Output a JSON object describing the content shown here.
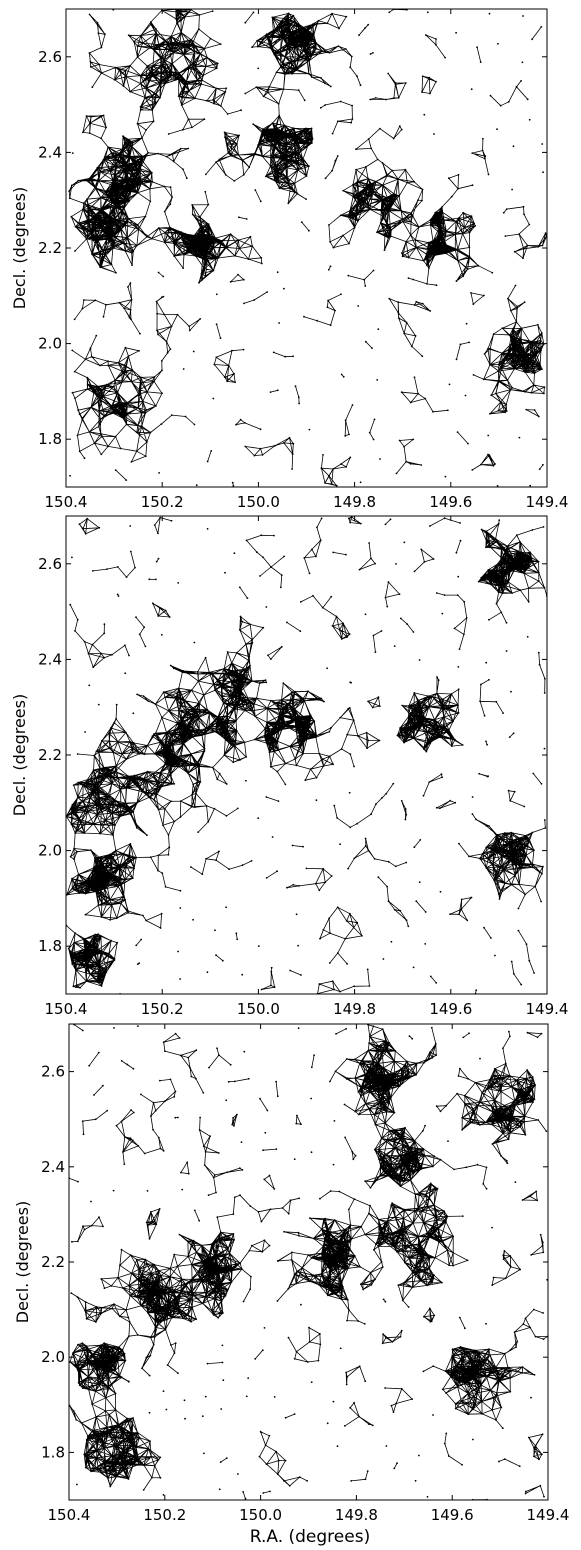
{
  "figure": {
    "xlabel": "R.A. (degrees)"
  },
  "chart_data": [
    {
      "type": "scatter",
      "panel": "top",
      "title": "",
      "xlabel": "",
      "ylabel": "Decl. (degrees)",
      "xlim": [
        150.4,
        149.4
      ],
      "ylim": [
        1.7,
        2.7
      ],
      "x_ticks": [
        "150.4",
        "150.2",
        "150.0",
        "149.8",
        "149.6",
        "149.4"
      ],
      "y_ticks": [
        "1.8",
        "2.0",
        "2.2",
        "2.4",
        "2.6"
      ],
      "x_tick_values": [
        150.4,
        150.2,
        150.0,
        149.8,
        149.6,
        149.4
      ],
      "y_tick_values": [
        1.8,
        2.0,
        2.2,
        2.4,
        2.6
      ],
      "grid": false,
      "series": [
        {
          "marker": "point",
          "connections": "network graph",
          "color": "#000000"
        }
      ],
      "dense_regions": [
        {
          "x": 150.18,
          "y": 2.58,
          "spread": 0.08
        },
        {
          "x": 149.93,
          "y": 2.62,
          "spread": 0.06
        },
        {
          "x": 149.95,
          "y": 2.41,
          "spread": 0.07
        },
        {
          "x": 150.28,
          "y": 2.36,
          "spread": 0.07
        },
        {
          "x": 150.32,
          "y": 2.25,
          "spread": 0.06
        },
        {
          "x": 150.12,
          "y": 2.21,
          "spread": 0.05
        },
        {
          "x": 149.75,
          "y": 2.3,
          "spread": 0.06
        },
        {
          "x": 149.62,
          "y": 2.22,
          "spread": 0.05
        },
        {
          "x": 150.3,
          "y": 1.87,
          "spread": 0.07
        },
        {
          "x": 149.45,
          "y": 1.97,
          "spread": 0.05
        }
      ]
    },
    {
      "type": "scatter",
      "panel": "middle",
      "title": "",
      "xlabel": "",
      "ylabel": "Decl. (degrees)",
      "xlim": [
        150.4,
        149.4
      ],
      "ylim": [
        1.7,
        2.7
      ],
      "x_ticks": [
        "150.4",
        "150.2",
        "150.0",
        "149.8",
        "149.6",
        "149.4"
      ],
      "y_ticks": [
        "1.8",
        "2.0",
        "2.2",
        "2.4",
        "2.6"
      ],
      "x_tick_values": [
        150.4,
        150.2,
        150.0,
        149.8,
        149.6,
        149.4
      ],
      "y_tick_values": [
        1.8,
        2.0,
        2.2,
        2.4,
        2.6
      ],
      "grid": false,
      "series": [
        {
          "marker": "point",
          "connections": "network graph",
          "color": "#000000"
        }
      ],
      "dense_regions": [
        {
          "x": 150.05,
          "y": 2.34,
          "spread": 0.07
        },
        {
          "x": 150.15,
          "y": 2.22,
          "spread": 0.08
        },
        {
          "x": 150.3,
          "y": 2.12,
          "spread": 0.08
        },
        {
          "x": 150.33,
          "y": 1.95,
          "spread": 0.06
        },
        {
          "x": 149.65,
          "y": 2.26,
          "spread": 0.05
        },
        {
          "x": 149.92,
          "y": 2.26,
          "spread": 0.06
        },
        {
          "x": 149.48,
          "y": 2.6,
          "spread": 0.05
        },
        {
          "x": 149.47,
          "y": 1.98,
          "spread": 0.05
        },
        {
          "x": 150.36,
          "y": 1.78,
          "spread": 0.05
        }
      ]
    },
    {
      "type": "scatter",
      "panel": "bottom",
      "title": "",
      "xlabel": "R.A. (degrees)",
      "ylabel": "Decl. (degrees)",
      "xlim": [
        150.4,
        149.4
      ],
      "ylim": [
        1.7,
        2.7
      ],
      "x_ticks": [
        "150.4",
        "150.2",
        "150.0",
        "149.8",
        "149.6",
        "149.4"
      ],
      "y_ticks": [
        "1.8",
        "2.0",
        "2.2",
        "2.4",
        "2.6"
      ],
      "x_tick_values": [
        150.4,
        150.2,
        150.0,
        149.8,
        149.6,
        149.4
      ],
      "y_tick_values": [
        1.8,
        2.0,
        2.2,
        2.4,
        2.6
      ],
      "grid": false,
      "series": [
        {
          "marker": "point",
          "connections": "network graph",
          "color": "#000000"
        }
      ],
      "dense_regions": [
        {
          "x": 150.22,
          "y": 2.13,
          "spread": 0.07
        },
        {
          "x": 150.1,
          "y": 2.2,
          "spread": 0.06
        },
        {
          "x": 149.85,
          "y": 2.21,
          "spread": 0.07
        },
        {
          "x": 149.68,
          "y": 2.24,
          "spread": 0.07
        },
        {
          "x": 149.7,
          "y": 2.4,
          "spread": 0.05
        },
        {
          "x": 149.5,
          "y": 2.52,
          "spread": 0.06
        },
        {
          "x": 149.75,
          "y": 2.6,
          "spread": 0.06
        },
        {
          "x": 150.34,
          "y": 1.98,
          "spread": 0.05
        },
        {
          "x": 150.3,
          "y": 1.8,
          "spread": 0.06
        },
        {
          "x": 149.55,
          "y": 1.95,
          "spread": 0.06
        }
      ]
    }
  ]
}
